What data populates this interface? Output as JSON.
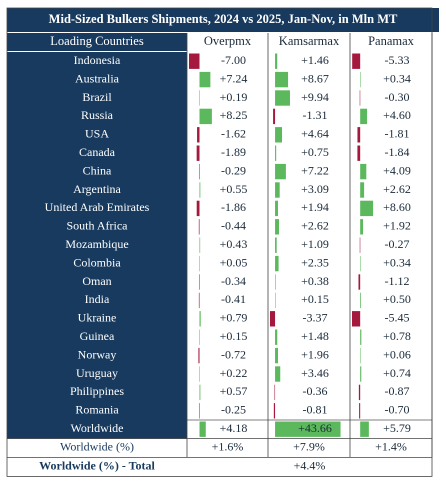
{
  "title": "Mid-Sized Bulkers Shipments, 2024 vs 2025, Jan-Nov, in Mln MT",
  "header": {
    "first": "Loading Countries",
    "columns": [
      "Overpmx",
      "Kamsarmax",
      "Panamax"
    ]
  },
  "rows": [
    {
      "country": "Indonesia",
      "values": [
        -7.0,
        1.46,
        -5.33
      ],
      "value_labels": [
        "-7.00",
        "+1.46",
        "-5.33"
      ]
    },
    {
      "country": "Australia",
      "values": [
        7.24,
        8.67,
        0.34
      ],
      "value_labels": [
        "+7.24",
        "+8.67",
        "+0.34"
      ]
    },
    {
      "country": "Brazil",
      "values": [
        0.19,
        9.94,
        -0.3
      ],
      "value_labels": [
        "+0.19",
        "+9.94",
        "-0.30"
      ]
    },
    {
      "country": "Russia",
      "values": [
        8.25,
        -1.31,
        4.6
      ],
      "value_labels": [
        "+8.25",
        "-1.31",
        "+4.60"
      ]
    },
    {
      "country": "USA",
      "values": [
        -1.62,
        4.64,
        -1.81
      ],
      "value_labels": [
        "-1.62",
        "+4.64",
        "-1.81"
      ]
    },
    {
      "country": "Canada",
      "values": [
        -1.89,
        0.75,
        -1.84
      ],
      "value_labels": [
        "-1.89",
        "+0.75",
        "-1.84"
      ]
    },
    {
      "country": "China",
      "values": [
        -0.29,
        7.22,
        4.09
      ],
      "value_labels": [
        "-0.29",
        "+7.22",
        "+4.09"
      ]
    },
    {
      "country": "Argentina",
      "values": [
        0.55,
        3.09,
        2.62
      ],
      "value_labels": [
        "+0.55",
        "+3.09",
        "+2.62"
      ]
    },
    {
      "country": "United Arab Emirates",
      "values": [
        -1.86,
        1.94,
        8.6
      ],
      "value_labels": [
        "-1.86",
        "+1.94",
        "+8.60"
      ]
    },
    {
      "country": "South Africa",
      "values": [
        -0.44,
        2.62,
        1.92
      ],
      "value_labels": [
        "-0.44",
        "+2.62",
        "+1.92"
      ]
    },
    {
      "country": "Mozambique",
      "values": [
        0.43,
        1.09,
        -0.27
      ],
      "value_labels": [
        "+0.43",
        "+1.09",
        "-0.27"
      ]
    },
    {
      "country": "Colombia",
      "values": [
        0.05,
        2.35,
        0.34
      ],
      "value_labels": [
        "+0.05",
        "+2.35",
        "+0.34"
      ]
    },
    {
      "country": "Oman",
      "values": [
        -0.34,
        0.38,
        -1.12
      ],
      "value_labels": [
        "-0.34",
        "+0.38",
        "-1.12"
      ]
    },
    {
      "country": "India",
      "values": [
        -0.41,
        0.15,
        0.5
      ],
      "value_labels": [
        "-0.41",
        "+0.15",
        "+0.50"
      ]
    },
    {
      "country": "Ukraine",
      "values": [
        0.79,
        -3.37,
        -5.45
      ],
      "value_labels": [
        "+0.79",
        "-3.37",
        "-5.45"
      ]
    },
    {
      "country": "Guinea",
      "values": [
        0.15,
        1.48,
        0.78
      ],
      "value_labels": [
        "+0.15",
        "+1.48",
        "+0.78"
      ]
    },
    {
      "country": "Norway",
      "values": [
        -0.72,
        1.96,
        0.06
      ],
      "value_labels": [
        "-0.72",
        "+1.96",
        "+0.06"
      ]
    },
    {
      "country": "Uruguay",
      "values": [
        0.22,
        3.46,
        0.74
      ],
      "value_labels": [
        "+0.22",
        "+3.46",
        "+0.74"
      ]
    },
    {
      "country": "Philippines",
      "values": [
        0.57,
        -0.36,
        -0.87
      ],
      "value_labels": [
        "+0.57",
        "-0.36",
        "-0.87"
      ]
    },
    {
      "country": "Romania",
      "values": [
        -0.25,
        -0.81,
        -0.7
      ],
      "value_labels": [
        "-0.25",
        "-0.81",
        "-0.70"
      ]
    }
  ],
  "worldwide": {
    "country": "Worldwide",
    "values": [
      4.18,
      43.66,
      5.79
    ],
    "value_labels": [
      "+4.18",
      "+43.66",
      "+5.79"
    ]
  },
  "worldwide_pct": {
    "label": "Worldwide (%)",
    "values": [
      "+1.6%",
      "+7.9%",
      "+1.4%"
    ]
  },
  "total": {
    "label": "Worldwide (%) - Total",
    "value": "+4.4%"
  }
}
